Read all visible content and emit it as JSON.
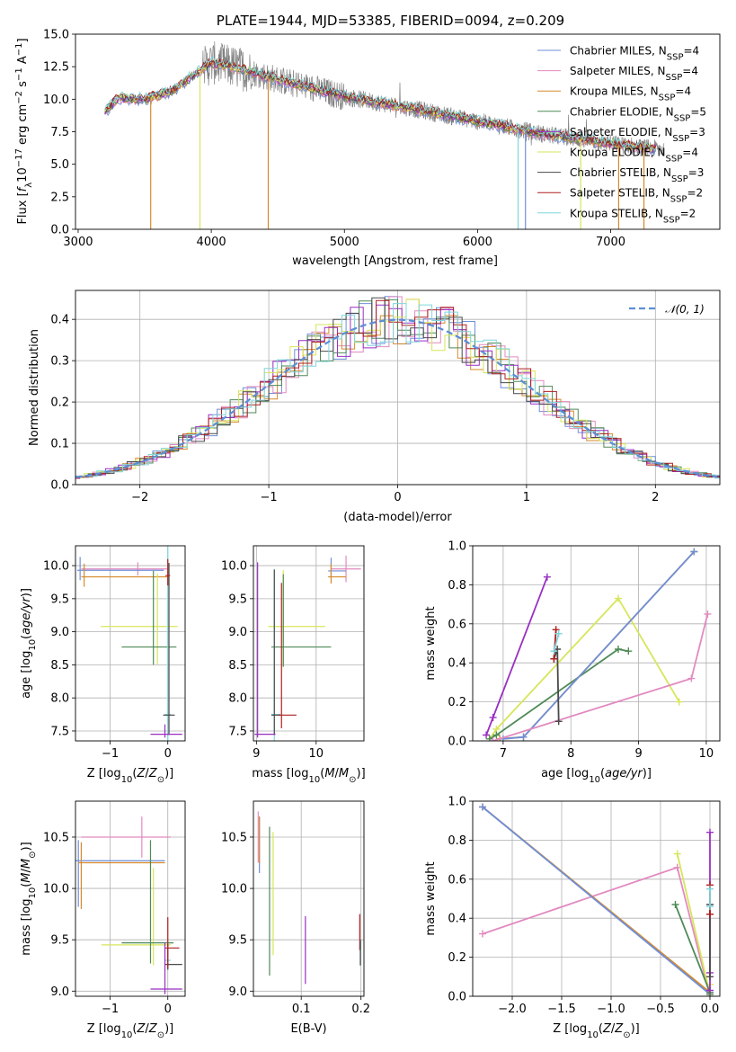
{
  "colors": {
    "Chabrier MILES": "#6f8fd8",
    "Salpeter MILES": "#e28ac0",
    "Kroupa MILES": "#d68a2b",
    "Chabrier ELODIE": "#4f8a57",
    "Salpeter ELODIE": "#9a2fc2",
    "Kroupa ELODIE": "#d7e65a",
    "Chabrier STELIB": "#4a4a4a",
    "Salpeter STELIB": "#b01f1f",
    "Kroupa STELIB": "#7fd6dc",
    "normal": "#5b8fd6",
    "data": "#808080",
    "grid": "#b0b0b0"
  },
  "chart_data": [
    {
      "id": "spectrum",
      "type": "line",
      "title": "PLATE=1944, MJD=53385, FIBERID=0094, z=0.209",
      "xlabel": "wavelength [Angstrom, rest frame]",
      "ylabel": "Flux [f_λ 10^-17 erg cm^-2 s^-1 A^-1]",
      "xlim": [
        2980,
        7820
      ],
      "ylim": [
        0,
        15
      ],
      "xticks": [
        "3000",
        "4000",
        "5000",
        "6000",
        "7000"
      ],
      "yticks": [
        "0.0",
        "2.5",
        "5.0",
        "7.5",
        "10.0",
        "12.5",
        "15.0"
      ],
      "grid": false,
      "legend_position": "top-right",
      "legend": [
        "Chabrier MILES, N_SSP=4",
        "Salpeter MILES, N_SSP=4",
        "Kroupa MILES, N_SSP=4",
        "Chabrier ELODIE, N_SSP=5",
        "Salpeter ELODIE, N_SSP=3",
        "Kroupa ELODIE, N_SSP=4",
        "Chabrier STELIB, N_SSP=3",
        "Salpeter STELIB, N_SSP=2",
        "Kroupa STELIB, N_SSP=2"
      ],
      "continuum": {
        "x": [
          3200,
          3300,
          3500,
          3700,
          3900,
          4000,
          4200,
          4500,
          5000,
          5500,
          6000,
          6500,
          7000,
          7300
        ],
        "y": [
          9.0,
          10.1,
          10.0,
          10.6,
          12.1,
          12.8,
          12.4,
          11.5,
          10.2,
          9.3,
          8.3,
          7.3,
          6.6,
          6.2
        ]
      },
      "drop_lines": [
        {
          "model": "Kroupa MILES",
          "x": 3545
        },
        {
          "model": "Kroupa ELODIE",
          "x": 3915
        },
        {
          "model": "Kroupa MILES",
          "x": 4428
        },
        {
          "model": "Kroupa STELIB",
          "x": 6305
        },
        {
          "model": "Chabrier MILES",
          "x": 6360
        },
        {
          "model": "Kroupa ELODIE",
          "x": 6775
        },
        {
          "model": "Kroupa MILES",
          "x": 7060
        },
        {
          "model": "Kroupa MILES",
          "x": 7250
        }
      ]
    },
    {
      "id": "residuals",
      "type": "line",
      "xlabel": "(data-model)/error",
      "ylabel": "Normed distribution",
      "xlim": [
        -2.5,
        2.5
      ],
      "ylim": [
        0,
        0.47
      ],
      "xticks": [
        "−2",
        "−1",
        "0",
        "1",
        "2"
      ],
      "yticks": [
        "0.0",
        "0.1",
        "0.2",
        "0.3",
        "0.4"
      ],
      "grid": true,
      "legend_position": "top-right",
      "legend": [
        "𝒩(0, 1)"
      ]
    },
    {
      "id": "age_vs_Z",
      "type": "scatter",
      "xlabel": "Z [log10(Z/Z⊙)]",
      "ylabel": "age  [log10(age/yr)]",
      "xlim": [
        -1.6,
        0.3
      ],
      "ylim": [
        7.35,
        10.3
      ],
      "xticks": [
        "−1",
        "0"
      ],
      "yticks": [
        "7.5",
        "8.0",
        "8.5",
        "9.0",
        "9.5",
        "10.0"
      ],
      "grid": true,
      "errorbars": [
        {
          "model": "Salpeter MILES",
          "x": -0.52,
          "xerr": [
            0.98,
            0.52
          ],
          "y": 9.95,
          "yerr": [
            0.1,
            0.1
          ]
        },
        {
          "model": "Chabrier MILES",
          "x": -1.52,
          "xerr": [
            0.05,
            1.45
          ],
          "y": 9.93,
          "yerr": [
            0.15,
            0.2
          ]
        },
        {
          "model": "Kroupa MILES",
          "x": -1.45,
          "xerr": [
            0.05,
            1.45
          ],
          "y": 9.83,
          "yerr": [
            0.15,
            0.2
          ]
        },
        {
          "model": "Kroupa ELODIE",
          "x": -0.18,
          "xerr": [
            0.98,
            0.35
          ],
          "y": 9.08,
          "yerr": [
            0.57,
            0.8
          ]
        },
        {
          "model": "Chabrier ELODIE",
          "x": -0.25,
          "xerr": [
            0.55,
            0.4
          ],
          "y": 8.77,
          "yerr": [
            0.27,
            1.15
          ]
        },
        {
          "model": "Kroupa STELIB",
          "x": 0.0,
          "xerr": [
            0.05,
            0.05
          ],
          "y": 7.75,
          "yerr": [
            0.4,
            2.6
          ]
        },
        {
          "model": "Chabrier STELIB",
          "x": 0.02,
          "xerr": [
            0.1,
            0.1
          ],
          "y": 7.74,
          "yerr": [
            0.3,
            2.3
          ]
        },
        {
          "model": "Salpeter STELIB",
          "x": 0.0,
          "xerr": [
            0.04,
            0.04
          ],
          "y": 9.85,
          "yerr": [
            0.15,
            0.25
          ]
        },
        {
          "model": "Salpeter ELODIE",
          "x": -0.05,
          "xerr": [
            0.25,
            0.3
          ],
          "y": 7.45,
          "yerr": [
            0.05,
            0.15
          ]
        }
      ]
    },
    {
      "id": "age_vs_mass",
      "type": "scatter",
      "xlabel": "mass [log10(M/M⊙)]",
      "xlim": [
        8.95,
        10.8
      ],
      "ylim": [
        7.35,
        10.3
      ],
      "xticks": [
        "9",
        "10"
      ],
      "yticks": [
        "7.5",
        "8.0",
        "8.5",
        "9.0",
        "9.5",
        "10.0"
      ],
      "grid": true,
      "errorbars": [
        {
          "model": "Salpeter MILES",
          "x": 10.5,
          "xerr": [
            0.25,
            0.25
          ],
          "y": 9.95,
          "yerr": [
            0.2,
            0.2
          ]
        },
        {
          "model": "Chabrier MILES",
          "x": 10.25,
          "xerr": [
            0.05,
            0.25
          ],
          "y": 9.92,
          "yerr": [
            0.1,
            0.2
          ]
        },
        {
          "model": "Kroupa MILES",
          "x": 10.25,
          "xerr": [
            0.05,
            0.25
          ],
          "y": 9.83,
          "yerr": [
            0.1,
            0.2
          ]
        },
        {
          "model": "Kroupa ELODIE",
          "x": 9.45,
          "xerr": [
            0.25,
            0.7
          ],
          "y": 9.08,
          "yerr": [
            0.6,
            0.85
          ]
        },
        {
          "model": "Chabrier ELODIE",
          "x": 9.45,
          "xerr": [
            0.2,
            0.8
          ],
          "y": 8.77,
          "yerr": [
            0.3,
            1.1
          ]
        },
        {
          "model": "Kroupa STELIB",
          "x": 9.3,
          "xerr": [
            0.05,
            0.1
          ],
          "y": 7.75,
          "yerr": [
            0.4,
            2.2
          ]
        },
        {
          "model": "Chabrier STELIB",
          "x": 9.3,
          "xerr": [
            0.05,
            0.1
          ],
          "y": 7.74,
          "yerr": [
            0.3,
            2.2
          ]
        },
        {
          "model": "Salpeter STELIB",
          "x": 9.42,
          "xerr": [
            0.05,
            0.25
          ],
          "y": 7.74,
          "yerr": [
            0.2,
            2.0
          ]
        },
        {
          "model": "Salpeter ELODIE",
          "x": 9.02,
          "xerr": [
            0.05,
            0.3
          ],
          "y": 7.45,
          "yerr": [
            0.05,
            2.6
          ]
        }
      ]
    },
    {
      "id": "weight_vs_age",
      "type": "line",
      "xlabel": "age  [log10(age/yr)]",
      "ylabel": "mass weight",
      "xlim": [
        6.55,
        10.2
      ],
      "ylim": [
        0,
        1
      ],
      "xticks": [
        "7",
        "8",
        "9",
        "10"
      ],
      "yticks": [
        "0.0",
        "0.2",
        "0.4",
        "0.6",
        "0.8",
        "1.0"
      ],
      "grid": true,
      "series": [
        {
          "model": "Salpeter ELODIE",
          "x": [
            6.75,
            6.85,
            7.65
          ],
          "y": [
            0.03,
            0.12,
            0.84
          ]
        },
        {
          "model": "Kroupa ELODIE",
          "x": [
            6.8,
            6.9,
            8.7,
            9.6
          ],
          "y": [
            0.01,
            0.06,
            0.73,
            0.2
          ]
        },
        {
          "model": "Chabrier ELODIE",
          "x": [
            6.8,
            6.9,
            8.7,
            8.85
          ],
          "y": [
            0.01,
            0.03,
            0.47,
            0.46
          ]
        },
        {
          "model": "Kroupa MILES",
          "x": [
            6.95,
            7.3,
            9.82
          ],
          "y": [
            0.01,
            0.02,
            0.97
          ]
        },
        {
          "model": "Chabrier MILES",
          "x": [
            7.0,
            7.3,
            9.82
          ],
          "y": [
            0.01,
            0.02,
            0.97
          ]
        },
        {
          "model": "Salpeter MILES",
          "x": [
            6.85,
            9.78,
            10.02
          ],
          "y": [
            0.0,
            0.32,
            0.65
          ]
        },
        {
          "model": "Chabrier STELIB",
          "x": [
            7.75,
            7.8,
            7.82
          ],
          "y": [
            0.42,
            0.47,
            0.1
          ]
        },
        {
          "model": "Salpeter STELIB",
          "x": [
            7.75,
            7.78
          ],
          "y": [
            0.42,
            0.57
          ]
        },
        {
          "model": "Kroupa STELIB",
          "x": [
            7.75,
            7.82
          ],
          "y": [
            0.46,
            0.55
          ]
        }
      ]
    },
    {
      "id": "mass_vs_Z",
      "type": "scatter",
      "xlabel": "Z [log10(Z/Z⊙)]",
      "ylabel": "mass [log10(M/M⊙)]",
      "xlim": [
        -1.6,
        0.3
      ],
      "ylim": [
        8.95,
        10.85
      ],
      "xticks": [
        "−1",
        "0"
      ],
      "yticks": [
        "9.0",
        "9.5",
        "10.0",
        "10.5"
      ],
      "grid": true,
      "errorbars": [
        {
          "model": "Salpeter MILES",
          "x": -0.45,
          "xerr": [
            1.05,
            0.5
          ],
          "y": 10.5,
          "yerr": [
            0.2,
            0.2
          ]
        },
        {
          "model": "Chabrier MILES",
          "x": -1.55,
          "xerr": [
            0.05,
            1.5
          ],
          "y": 10.27,
          "yerr": [
            0.45,
            0.2
          ]
        },
        {
          "model": "Kroupa MILES",
          "x": -1.5,
          "xerr": [
            0.05,
            1.45
          ],
          "y": 10.25,
          "yerr": [
            0.45,
            0.2
          ]
        },
        {
          "model": "Kroupa ELODIE",
          "x": -0.25,
          "xerr": [
            0.9,
            0.3
          ],
          "y": 9.45,
          "yerr": [
            0.2,
            0.75
          ]
        },
        {
          "model": "Chabrier ELODIE",
          "x": -0.3,
          "xerr": [
            0.5,
            0.4
          ],
          "y": 9.47,
          "yerr": [
            0.2,
            1.0
          ]
        },
        {
          "model": "Kroupa STELIB",
          "x": 0.0,
          "xerr": [
            0.05,
            0.05
          ],
          "y": 9.3,
          "yerr": [
            0.1,
            0.2
          ]
        },
        {
          "model": "Chabrier STELIB",
          "x": 0.0,
          "xerr": [
            0.05,
            0.25
          ],
          "y": 9.26,
          "yerr": [
            0.05,
            0.2
          ]
        },
        {
          "model": "Salpeter STELIB",
          "x": 0.0,
          "xerr": [
            0.05,
            0.2
          ],
          "y": 9.42,
          "yerr": [
            0.2,
            0.3
          ]
        },
        {
          "model": "Salpeter ELODIE",
          "x": -0.05,
          "xerr": [
            0.25,
            0.3
          ],
          "y": 9.02,
          "yerr": [
            0.05,
            0.45
          ]
        }
      ]
    },
    {
      "id": "mass_vs_EBV",
      "type": "scatter",
      "xlabel": "E(B-V)",
      "xlim": [
        0.02,
        0.205
      ],
      "ylim": [
        8.95,
        10.85
      ],
      "xticks": [
        "0.1",
        "0.2"
      ],
      "yticks": [
        "9.0",
        "9.5",
        "10.0",
        "10.5"
      ],
      "grid": true,
      "errorbars": [
        {
          "model": "Salpeter MILES",
          "x": 0.028,
          "yerr": [
            0.25,
            0.25
          ],
          "y": 10.5
        },
        {
          "model": "Chabrier MILES",
          "x": 0.03,
          "yerr": [
            0.3,
            0.25
          ],
          "y": 10.45
        },
        {
          "model": "Kroupa MILES",
          "x": 0.03,
          "yerr": [
            0.25,
            0.2
          ],
          "y": 10.5
        },
        {
          "model": "Kroupa ELODIE",
          "x": 0.053,
          "yerr": [
            0.45,
            0.75
          ],
          "y": 9.8
        },
        {
          "model": "Chabrier ELODIE",
          "x": 0.047,
          "yerr": [
            0.6,
            0.85
          ],
          "y": 9.75
        },
        {
          "model": "Salpeter ELODIE",
          "x": 0.107,
          "yerr": [
            0.28,
            0.38
          ],
          "y": 9.35
        },
        {
          "model": "Salpeter STELIB",
          "x": 0.198,
          "yerr": [
            0.1,
            0.25
          ],
          "y": 9.5
        },
        {
          "model": "Kroupa STELIB",
          "x": 0.199,
          "yerr": [
            0.1,
            0.15
          ],
          "y": 9.35
        },
        {
          "model": "Chabrier STELIB",
          "x": 0.199,
          "yerr": [
            0.05,
            0.2
          ],
          "y": 9.3
        }
      ]
    },
    {
      "id": "weight_vs_Z",
      "type": "line",
      "xlabel": "Z [log10(Z/Z⊙)]",
      "ylabel": "mass weight",
      "xlim": [
        -2.4,
        0.1
      ],
      "ylim": [
        0,
        1
      ],
      "xticks": [
        "−2.0",
        "−1.5",
        "−1.0",
        "−0.5",
        "0.0"
      ],
      "yticks": [
        "0.0",
        "0.2",
        "0.4",
        "0.6",
        "0.8",
        "1.0"
      ],
      "grid": true,
      "series": [
        {
          "model": "Salpeter MILES",
          "x": [
            -2.3,
            -0.33,
            0.0
          ],
          "y": [
            0.32,
            0.66,
            0.0
          ]
        },
        {
          "model": "Kroupa MILES",
          "x": [
            -2.3,
            0.0,
            0.0
          ],
          "y": [
            0.97,
            0.02,
            0.01
          ]
        },
        {
          "model": "Chabrier MILES",
          "x": [
            -2.3,
            0.0
          ],
          "y": [
            0.97,
            0.01
          ]
        },
        {
          "model": "Kroupa ELODIE",
          "x": [
            -0.33,
            0.0,
            0.0
          ],
          "y": [
            0.73,
            0.01,
            0.06
          ]
        },
        {
          "model": "Chabrier ELODIE",
          "x": [
            -0.35,
            0.0,
            0.0
          ],
          "y": [
            0.47,
            0.02,
            0.01
          ]
        },
        {
          "model": "Salpeter ELODIE",
          "x": [
            0.0,
            0.0,
            0.0
          ],
          "y": [
            0.84,
            0.12,
            0.03
          ]
        },
        {
          "model": "Chabrier STELIB",
          "x": [
            0.0,
            0.0,
            0.0
          ],
          "y": [
            0.47,
            0.1,
            0.42
          ]
        },
        {
          "model": "Salpeter STELIB",
          "x": [
            0.0,
            0.0
          ],
          "y": [
            0.42,
            0.57
          ]
        },
        {
          "model": "Kroupa STELIB",
          "x": [
            0.0,
            0.0
          ],
          "y": [
            0.46,
            0.55
          ]
        }
      ]
    }
  ]
}
